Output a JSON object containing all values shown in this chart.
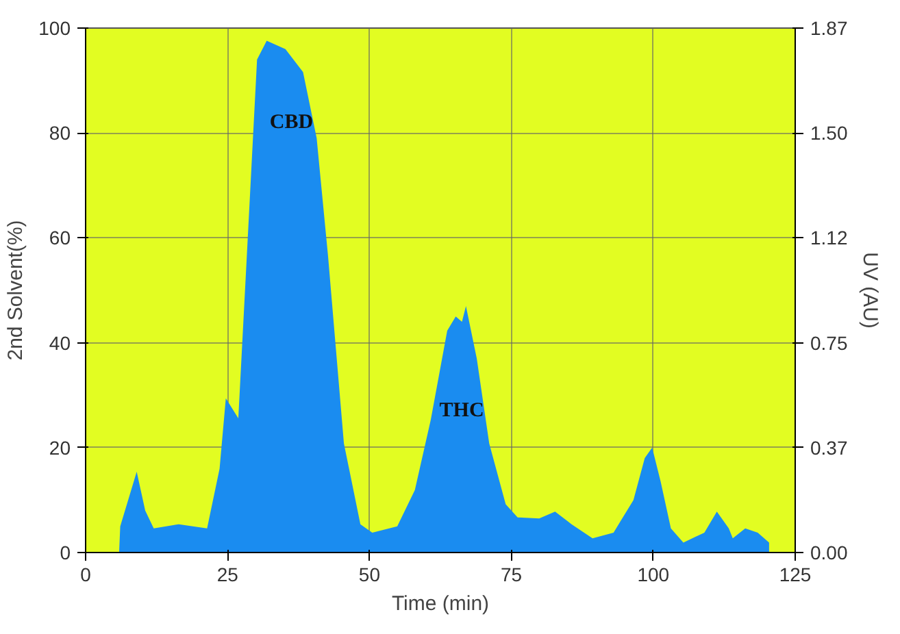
{
  "chart_data": {
    "type": "area",
    "xlabel": "Time (min)",
    "ylabel": "2nd Solvent(%)",
    "y2label": "UV (AU)",
    "xlim": [
      0,
      125
    ],
    "xticks": [
      0,
      25,
      50,
      75,
      100,
      125
    ],
    "ylim": [
      0,
      100
    ],
    "yticks": [
      0,
      20,
      40,
      60,
      80,
      100
    ],
    "y2lim": [
      0,
      1.87
    ],
    "y2ticks": [
      {
        "value": 0,
        "label": "0.00"
      },
      {
        "value": 0.374,
        "label": "0.37"
      },
      {
        "value": 0.748,
        "label": "0.75"
      },
      {
        "value": 1.122,
        "label": "1.12"
      },
      {
        "value": 1.496,
        "label": "1.50"
      },
      {
        "value": 1.87,
        "label": "1.87"
      }
    ],
    "grid": true,
    "x": [
      5.9,
      6.1,
      9.0,
      10.5,
      12.0,
      16.4,
      21.4,
      23.6,
      24.7,
      26.9,
      28.4,
      30.2,
      31.9,
      35.2,
      38.3,
      40.7,
      42.7,
      45.5,
      48.4,
      50.5,
      54.9,
      58.0,
      60.8,
      63.7,
      65.2,
      66.3,
      67.0,
      68.9,
      71.1,
      74.0,
      76.1,
      79.9,
      82.7,
      85.6,
      89.3,
      93.0,
      96.5,
      98.5,
      99.8,
      101.3,
      103.1,
      105.3,
      109.0,
      111.2,
      113.3,
      114.0,
      116.2,
      118.4,
      120.4
    ],
    "series": [
      {
        "color": "#1a8cf0",
        "values": [
          0,
          5,
          15.4,
          8,
          4.6,
          5.4,
          4.6,
          16,
          29.4,
          25.6,
          56.6,
          94,
          97.6,
          96,
          91.6,
          79,
          56.6,
          20.8,
          5.4,
          3.8,
          5,
          11.9,
          25.3,
          42.3,
          45,
          44,
          47,
          37,
          20.8,
          9.2,
          6.7,
          6.5,
          7.8,
          5.4,
          2.7,
          3.8,
          10,
          18,
          20,
          13.5,
          4.6,
          1.9,
          3.8,
          7.8,
          4.6,
          2.7,
          4.6,
          3.8,
          1.9
        ]
      }
    ],
    "annotations": [
      "CBD",
      "THC"
    ]
  }
}
